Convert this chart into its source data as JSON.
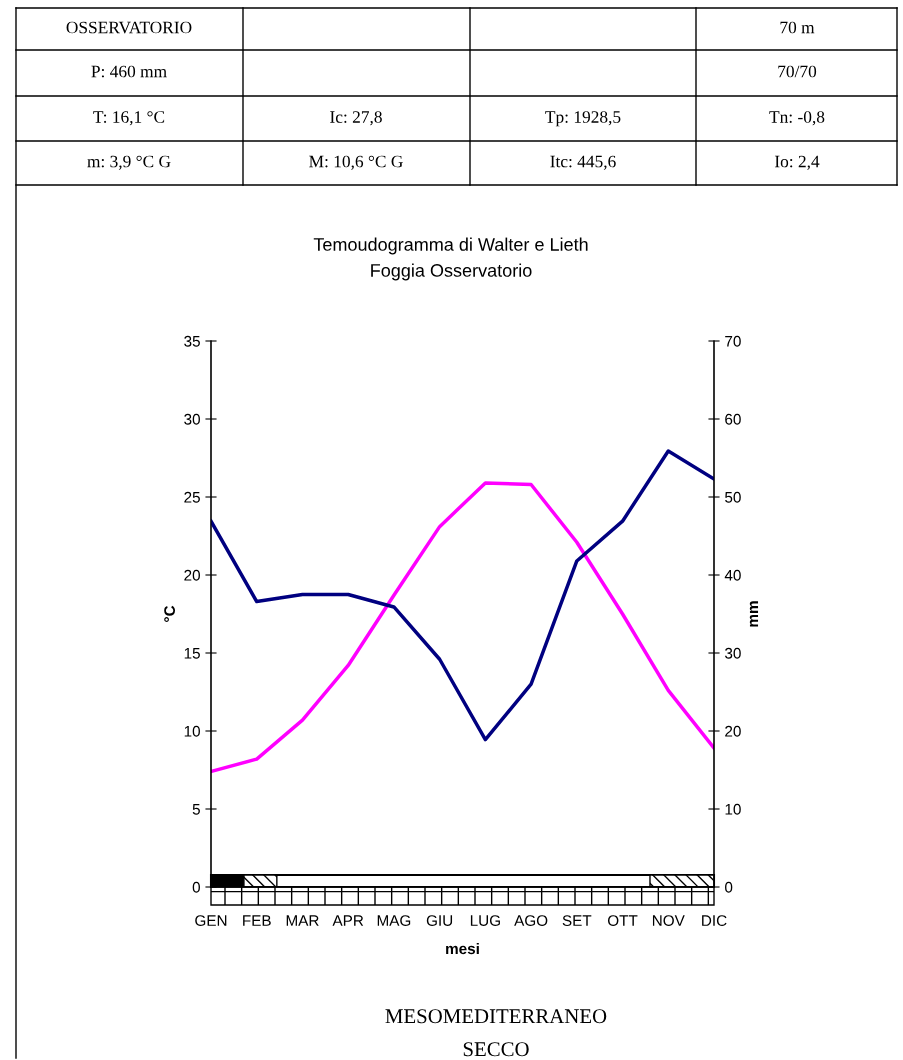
{
  "chart_data": {
    "type": "line",
    "title": "Temoudogramma di Walter e Lieth",
    "subtitle": "Foggia Osservatorio",
    "xlabel": "mesi",
    "ylabel": "°C",
    "y2label": "mm",
    "categories": [
      "GEN",
      "FEB",
      "MAR",
      "APR",
      "MAG",
      "GIU",
      "LUG",
      "AGO",
      "SET",
      "OTT",
      "NOV",
      "DIC"
    ],
    "series": [
      {
        "color": "#ff00ff",
        "values": [
          7.4,
          8.2,
          10.7,
          14.2,
          18.7,
          23.1,
          25.9,
          25.8,
          22.1,
          17.5,
          12.6,
          8.9
        ]
      },
      {
        "color": "#000080",
        "axis": "y2",
        "values": [
          46.9,
          36.6,
          37.5,
          37.5,
          35.9,
          29.2,
          18.9,
          26.0,
          41.8,
          46.9,
          55.9,
          52.3
        ]
      }
    ],
    "ylim": [
      0,
      35
    ],
    "yticks": [
      0,
      5,
      10,
      15,
      20,
      25,
      30,
      35
    ],
    "y2lim": [
      0,
      70
    ],
    "y2ticks": [
      0,
      10,
      20,
      30,
      40,
      50,
      60,
      70
    ],
    "grid": false,
    "legend": false,
    "annotations": [
      "OSSERVATORIO",
      "70 m",
      "P: 460 mm",
      "70/70",
      "T: 16,1 °C",
      "Ic: 27,8",
      "Tp: 1928,5",
      "Tn: -0,8",
      "m: 3,9 °C G",
      "M: 10,6 °C G",
      "Itc: 445,6",
      "Io: 2,4",
      "MESOMEDITERRANEO",
      "SECCO"
    ]
  }
}
